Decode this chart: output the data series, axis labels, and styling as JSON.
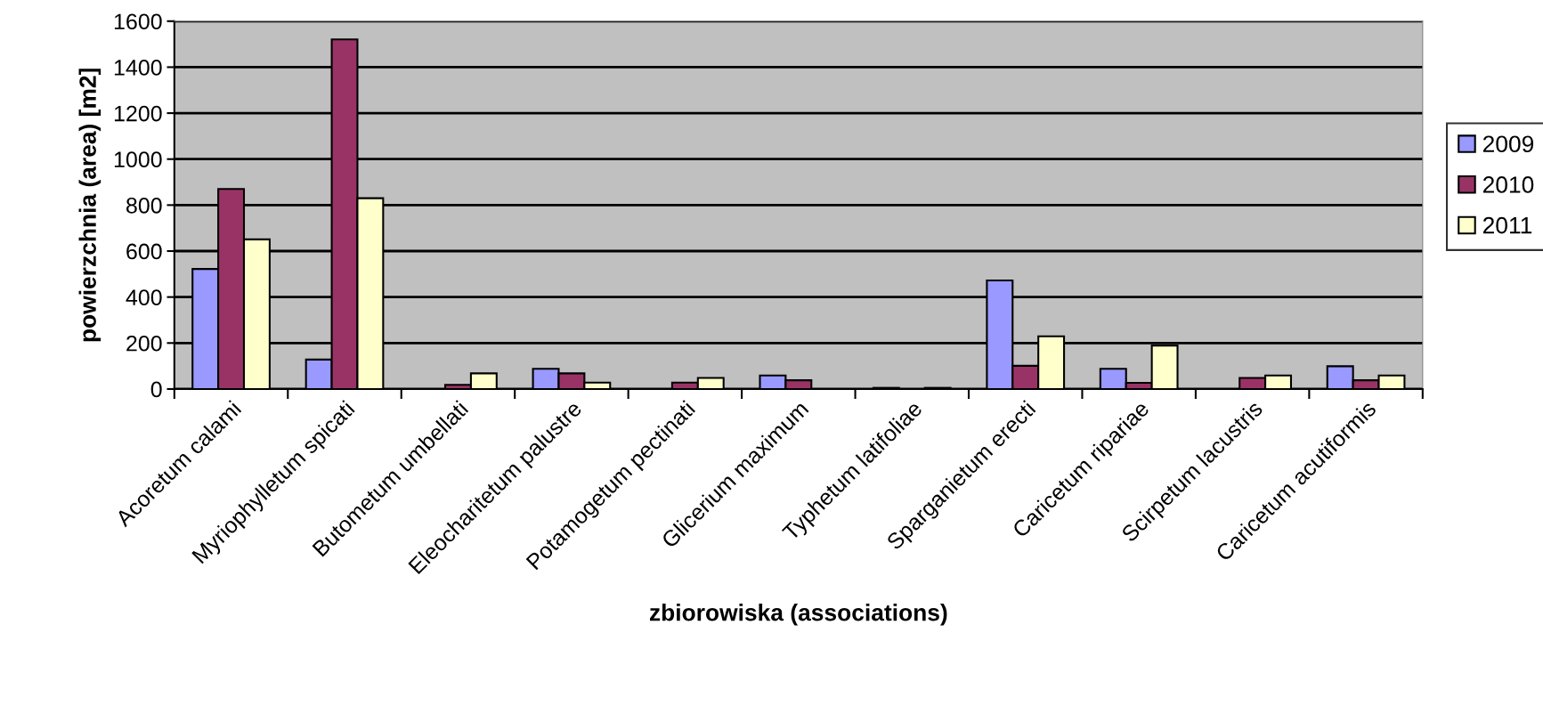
{
  "chart_data": {
    "type": "bar",
    "xlabel": "zbiorowiska (associations)",
    "ylabel": "powierzchnia (area) [m2]",
    "categories": [
      "Acoretum calami",
      "Myriophylletum spicati",
      "Butometum umbellati",
      "Eleocharitetum palustre",
      "Potamogetum pectinati",
      "Glicerium maximum",
      "Typhetum latifoliae",
      "Sparganietum erecti",
      "Caricetum ripariae",
      "Scirpetum lacustris",
      "Caricetum acutiformis"
    ],
    "series": [
      {
        "name": "2009",
        "color": "#9999ff",
        "values": [
          522,
          128,
          null,
          88,
          null,
          59,
          5,
          472,
          88,
          null,
          99
        ]
      },
      {
        "name": "2010",
        "color": "#993366",
        "values": [
          870,
          1521,
          18,
          68,
          28,
          38,
          null,
          101,
          27,
          48,
          38
        ]
      },
      {
        "name": "2011",
        "color": "#ffffcc",
        "values": [
          651,
          830,
          68,
          28,
          48,
          null,
          5,
          229,
          189,
          59,
          59
        ]
      }
    ],
    "ylim": [
      0,
      1600
    ],
    "yticks": [
      0,
      200,
      400,
      600,
      800,
      1000,
      1200,
      1400,
      1600
    ],
    "grid": "y",
    "legend": "right"
  }
}
